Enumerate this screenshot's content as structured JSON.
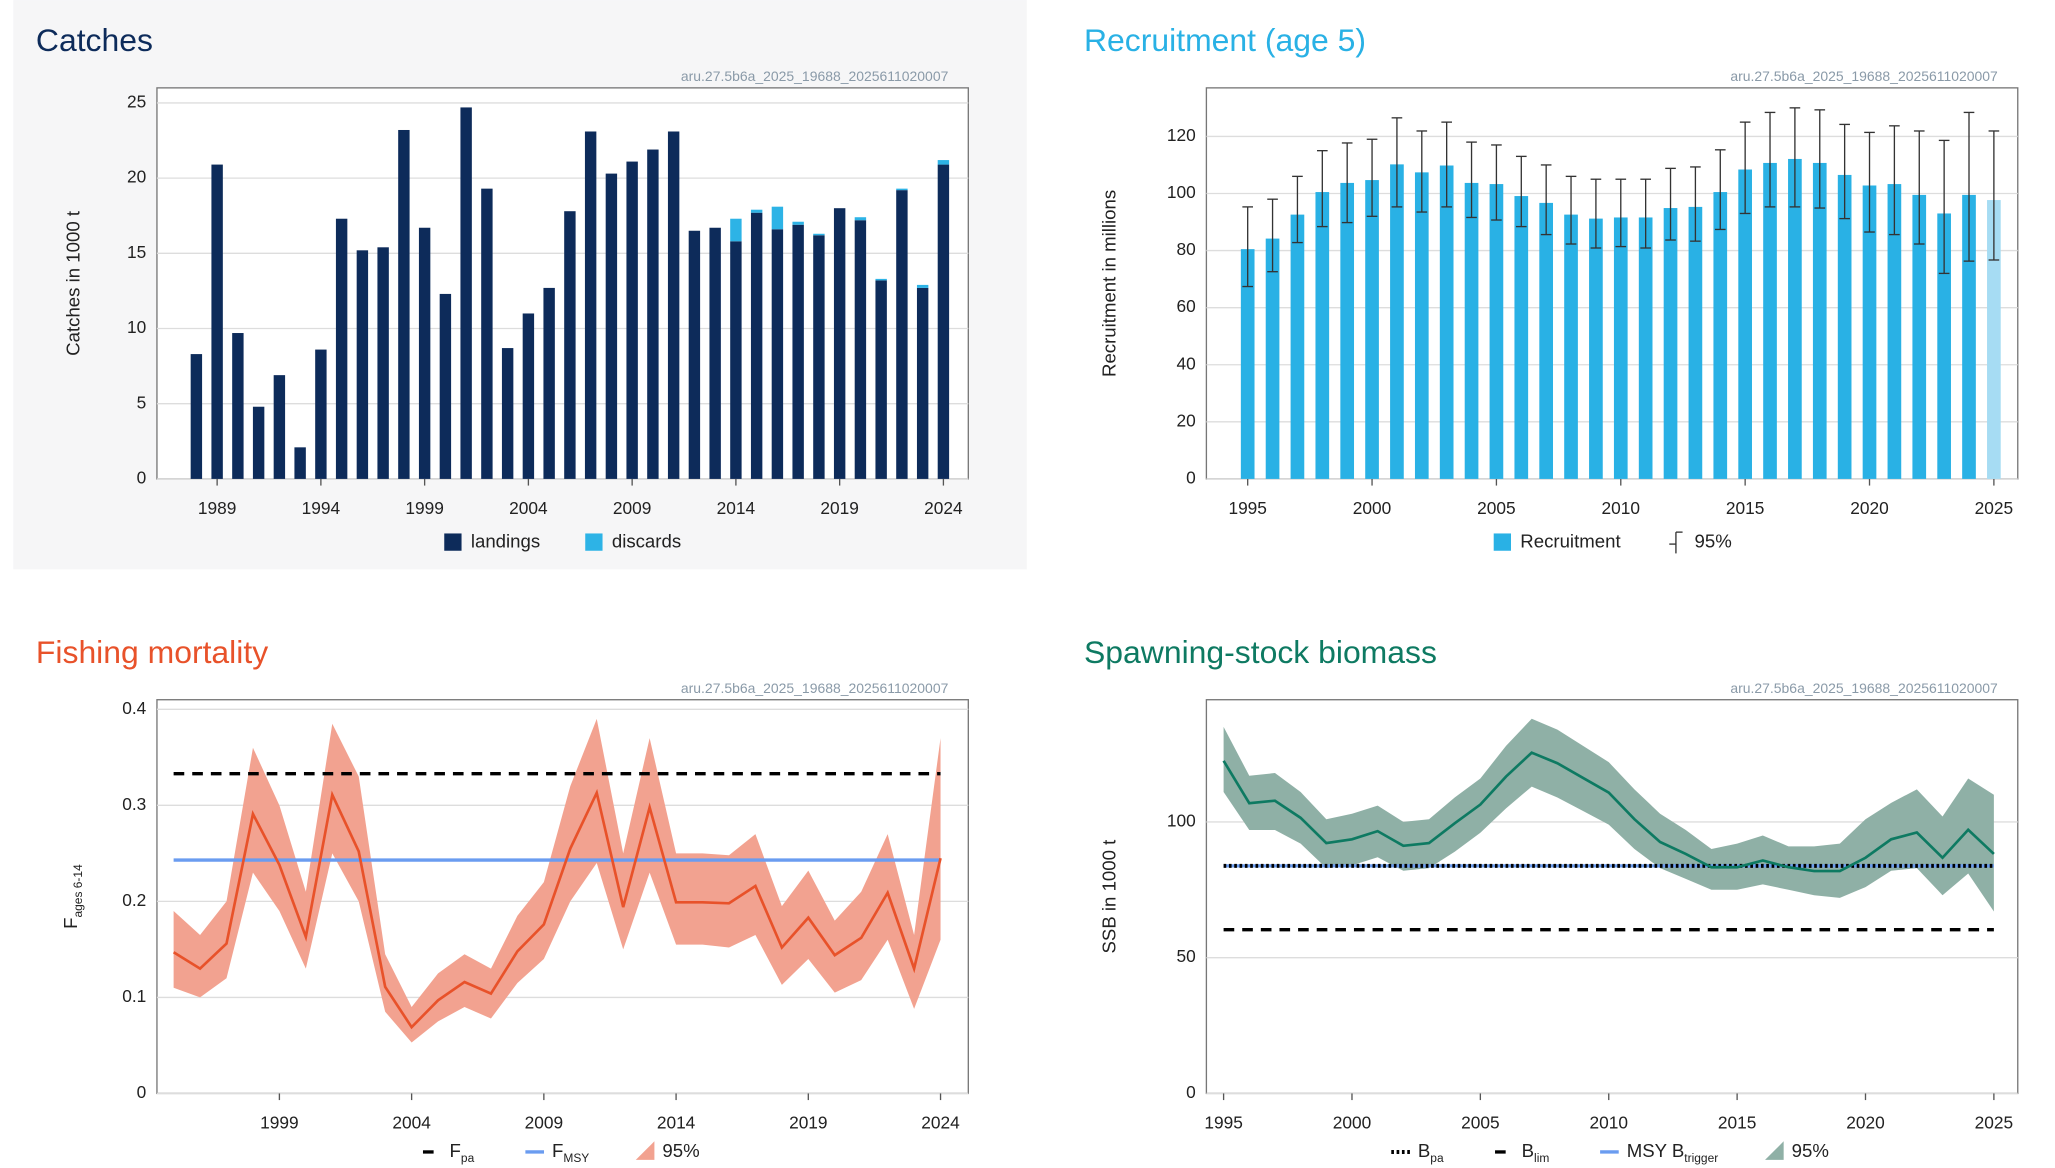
{
  "chart_data": [
    {
      "type": "bar",
      "title": "Catches",
      "title_color": "#0d2b5a",
      "stamp": "aru.27.5b6a_2025_19688_2025611020007",
      "ylabel": "Catches in 1000 t",
      "stacked": true,
      "grid": true,
      "x": [
        1988,
        1989,
        1990,
        1991,
        1992,
        1993,
        1994,
        1995,
        1996,
        1997,
        1998,
        1999,
        2000,
        2001,
        2002,
        2003,
        2004,
        2005,
        2006,
        2007,
        2008,
        2009,
        2010,
        2011,
        2012,
        2013,
        2014,
        2015,
        2016,
        2017,
        2018,
        2019,
        2020,
        2021,
        2022,
        2023,
        2024
      ],
      "xlim": [
        1986.1,
        2025.2
      ],
      "xticks": [
        1989,
        1994,
        1999,
        2004,
        2009,
        2014,
        2019,
        2024
      ],
      "ylim": [
        0,
        26
      ],
      "yticks": [
        0,
        5,
        10,
        15,
        20,
        25
      ],
      "series": [
        {
          "name": "landings",
          "color": "#0d2b5a",
          "values": [
            8.3,
            20.9,
            9.7,
            4.8,
            6.9,
            2.1,
            8.6,
            17.3,
            15.2,
            15.4,
            23.2,
            16.7,
            12.3,
            24.7,
            19.3,
            8.7,
            11.0,
            12.7,
            17.8,
            23.1,
            20.3,
            21.1,
            21.9,
            23.1,
            16.5,
            16.7,
            15.8,
            17.7,
            16.6,
            16.9,
            16.2,
            18.0,
            17.2,
            13.2,
            19.2,
            12.7,
            20.9
          ]
        },
        {
          "name": "discards",
          "color": "#2db3e6",
          "values": [
            0,
            0,
            0,
            0,
            0,
            0,
            0,
            0,
            0,
            0,
            0,
            0,
            0,
            0,
            0,
            0,
            0,
            0,
            0,
            0,
            0,
            0,
            0,
            0,
            0,
            0,
            1.5,
            0.2,
            1.5,
            0.2,
            0.1,
            0,
            0.2,
            0.1,
            0.1,
            0.2,
            0.3
          ]
        }
      ]
    },
    {
      "type": "bar",
      "title": "Recruitment (age 5)",
      "title_color": "#29b1e5",
      "stamp": "aru.27.5b6a_2025_19688_2025611020007",
      "ylabel": "Recruitment in millions",
      "grid": true,
      "interval_name": "95%",
      "x": [
        1995,
        1996,
        1997,
        1998,
        1999,
        2000,
        2001,
        2002,
        2003,
        2004,
        2005,
        2006,
        2007,
        2008,
        2009,
        2010,
        2011,
        2012,
        2013,
        2014,
        2015,
        2016,
        2017,
        2018,
        2019,
        2020,
        2021,
        2022,
        2023,
        2024,
        2025
      ],
      "xlim": [
        1993.34,
        2025.96
      ],
      "xticks": [
        1995,
        2000,
        2005,
        2010,
        2015,
        2020,
        2025
      ],
      "ylim": [
        0,
        137
      ],
      "yticks": [
        0,
        20,
        40,
        60,
        80,
        100,
        120
      ],
      "series": [
        {
          "name": "Recruitment",
          "color": "#29b1e5",
          "colors": [
            "#29b1e5",
            "#29b1e5",
            "#29b1e5",
            "#29b1e5",
            "#29b1e5",
            "#29b1e5",
            "#29b1e5",
            "#29b1e5",
            "#29b1e5",
            "#29b1e5",
            "#29b1e5",
            "#29b1e5",
            "#29b1e5",
            "#29b1e5",
            "#29b1e5",
            "#29b1e5",
            "#29b1e5",
            "#29b1e5",
            "#29b1e5",
            "#29b1e5",
            "#29b1e5",
            "#29b1e5",
            "#29b1e5",
            "#29b1e5",
            "#29b1e5",
            "#29b1e5",
            "#29b1e5",
            "#29b1e5",
            "#29b1e5",
            "#29b1e5",
            "#a6dcf3"
          ],
          "values": [
            80.5,
            84.2,
            92.6,
            100.5,
            103.7,
            104.7,
            110.2,
            107.4,
            109.8,
            103.7,
            103.3,
            99.1,
            96.7,
            92.6,
            91.2,
            91.6,
            91.6,
            94.9,
            95.3,
            100.5,
            108.4,
            110.7,
            112.1,
            110.7,
            106.5,
            102.8,
            103.3,
            99.5,
            93,
            99.5,
            97.7
          ],
          "low": [
            67.4,
            72.6,
            82.8,
            88.4,
            89.8,
            92,
            95.3,
            93.5,
            95.3,
            91.6,
            90.7,
            88.4,
            85.6,
            82.3,
            80.9,
            81.4,
            80.9,
            83.7,
            83.3,
            87.4,
            93,
            95.3,
            95.3,
            94.9,
            91.2,
            86.5,
            85.6,
            82.3,
            72,
            76.3,
            76.7
          ],
          "high": [
            95.3,
            98,
            106,
            115,
            117.7,
            119,
            126.5,
            121.9,
            125,
            118,
            117,
            113,
            110,
            106,
            105,
            105,
            105,
            108.8,
            109.3,
            115.3,
            125,
            128.4,
            130,
            129.3,
            124.2,
            121.4,
            123.7,
            121.9,
            118.6,
            128.4,
            121.9
          ]
        }
      ]
    },
    {
      "type": "line",
      "title": "Fishing mortality",
      "title_color": "#e8522a",
      "stamp": "aru.27.5b6a_2025_19688_2025611020007",
      "ylabel": {
        "text": "F",
        "sub": "ages 6-14"
      },
      "grid": true,
      "x": [
        1995,
        1996,
        1997,
        1998,
        1999,
        2000,
        2001,
        2002,
        2003,
        2004,
        2005,
        2006,
        2007,
        2008,
        2009,
        2010,
        2011,
        2012,
        2013,
        2014,
        2015,
        2016,
        2017,
        2018,
        2019,
        2020,
        2021,
        2022,
        2023,
        2024
      ],
      "xlim": [
        1994.37,
        2025.05
      ],
      "xticks": [
        1999,
        2004,
        2009,
        2014,
        2019,
        2024
      ],
      "ylim": [
        0,
        0.41
      ],
      "yticks": [
        0,
        0.1,
        0.2,
        0.3,
        0.4
      ],
      "series": [
        {
          "color": "#e8522a",
          "values": [
            0.147,
            0.13,
            0.156,
            0.291,
            0.238,
            0.163,
            0.311,
            0.252,
            0.111,
            0.069,
            0.097,
            0.116,
            0.104,
            0.148,
            0.176,
            0.255,
            0.313,
            0.194,
            0.298,
            0.199,
            0.199,
            0.198,
            0.216,
            0.152,
            0.183,
            0.144,
            0.162,
            0.209,
            0.13,
            0.245
          ]
        }
      ],
      "band": {
        "name": "95%",
        "color": "#f2a290",
        "low": [
          0.11,
          0.1,
          0.12,
          0.23,
          0.19,
          0.13,
          0.25,
          0.2,
          0.085,
          0.053,
          0.075,
          0.09,
          0.078,
          0.115,
          0.14,
          0.2,
          0.24,
          0.15,
          0.23,
          0.155,
          0.155,
          0.152,
          0.165,
          0.113,
          0.14,
          0.105,
          0.118,
          0.16,
          0.088,
          0.16
        ],
        "high": [
          0.19,
          0.165,
          0.2,
          0.36,
          0.3,
          0.21,
          0.385,
          0.33,
          0.145,
          0.09,
          0.125,
          0.145,
          0.13,
          0.185,
          0.22,
          0.32,
          0.39,
          0.25,
          0.37,
          0.25,
          0.25,
          0.248,
          0.27,
          0.195,
          0.232,
          0.18,
          0.21,
          0.27,
          0.165,
          0.37
        ]
      },
      "reference_lines": [
        {
          "name": {
            "text": "F",
            "sub": "pa"
          },
          "value": 0.333,
          "color": "#000000",
          "style": "dashed"
        },
        {
          "name": {
            "text": "F",
            "sub": "MSY"
          },
          "value": 0.243,
          "color": "#6a9cf0",
          "style": "solid"
        }
      ]
    },
    {
      "type": "line",
      "title": "Spawning-stock biomass",
      "title_color": "#0e7a62",
      "stamp": "aru.27.5b6a_2025_19688_2025611020007",
      "ylabel": "SSB in 1000 t",
      "grid": true,
      "x": [
        1995,
        1996,
        1997,
        1998,
        1999,
        2000,
        2001,
        2002,
        2003,
        2004,
        2005,
        2006,
        2007,
        2008,
        2009,
        2010,
        2011,
        2012,
        2013,
        2014,
        2015,
        2016,
        2017,
        2018,
        2019,
        2020,
        2021,
        2022,
        2023,
        2024,
        2025
      ],
      "xlim": [
        1994.33,
        2025.93
      ],
      "xticks": [
        1995,
        2000,
        2005,
        2010,
        2015,
        2020,
        2025
      ],
      "ylim": [
        0,
        145
      ],
      "yticks": [
        0,
        50,
        100
      ],
      "series": [
        {
          "color": "#0e7a62",
          "values": [
            122.5,
            106.9,
            107.8,
            101.5,
            92.2,
            93.6,
            96.6,
            91.2,
            92.2,
            99.5,
            106.4,
            116.7,
            125.5,
            121.6,
            116.2,
            110.8,
            101,
            92.6,
            88.2,
            83.3,
            83.3,
            85.8,
            83.3,
            81.9,
            81.9,
            86.8,
            93.6,
            96.1,
            86.8,
            97.1,
            88.2
          ]
        }
      ],
      "band": {
        "name": "95%",
        "color": "#8fb0a6",
        "low": [
          111,
          97,
          97,
          92,
          83,
          84,
          87,
          82,
          83,
          89,
          96,
          105,
          113,
          109,
          104,
          99,
          90,
          83,
          79,
          75,
          75,
          77,
          75,
          73,
          72,
          76,
          82,
          83,
          73,
          81,
          67
        ],
        "high": [
          135,
          117,
          118,
          111,
          101,
          103,
          106,
          100,
          101,
          109,
          116,
          128,
          138,
          134,
          128,
          122,
          112,
          103,
          97,
          90,
          92,
          95,
          91,
          91,
          92,
          101,
          107,
          112,
          102,
          116,
          110
        ]
      },
      "reference_lines": [
        {
          "name": {
            "text": "MSY B",
            "sub": "trigger"
          },
          "value": 83.8,
          "color": "#6a9cf0",
          "style": "solid"
        },
        {
          "name": {
            "text": "B",
            "sub": "pa"
          },
          "value": 83.8,
          "color": "#000000",
          "style": "dotted"
        },
        {
          "name": {
            "text": "B",
            "sub": "lim"
          },
          "value": 60.3,
          "color": "#000000",
          "style": "dashed"
        }
      ],
      "legend_order": [
        1,
        2,
        0
      ]
    }
  ]
}
